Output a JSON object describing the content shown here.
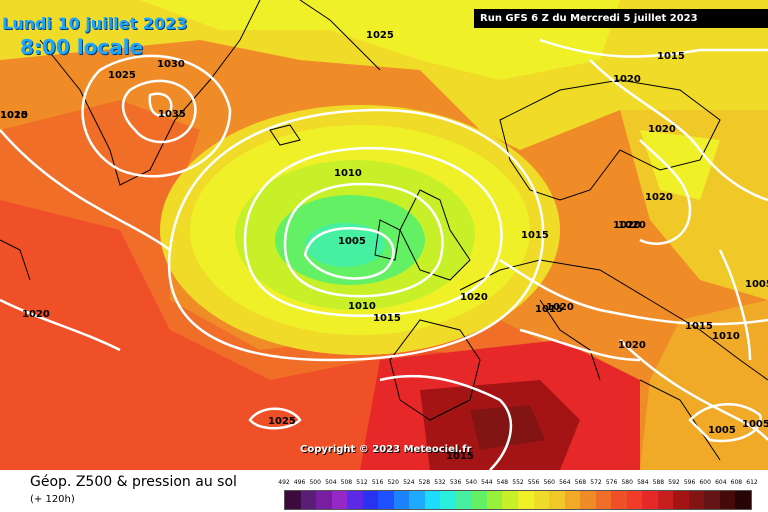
{
  "header": {
    "date": "Lundi 10 juillet 2023",
    "time": "8:00 locale",
    "run": "Run GFS 6 Z du Mercredi 5 juillet 2023"
  },
  "copyright": "Copyright © 2023 Meteociel.fr",
  "footer": {
    "title": "Géop. Z500 & pression au sol",
    "subtitle": "(+ 120h)"
  },
  "isobar_labels": [
    "1010",
    "1025",
    "1030",
    "1025",
    "1035",
    "1025",
    "1010",
    "1005",
    "1010",
    "1015",
    "1020",
    "1015",
    "1020",
    "1020",
    "1015",
    "1020",
    "1020",
    "1020",
    "1020",
    "1015",
    "1020",
    "1005",
    "1015",
    "1010",
    "1005",
    "1005",
    "1015",
    "1025",
    "1020"
  ],
  "legend": {
    "ticks": [
      "492",
      "496",
      "500",
      "504",
      "508",
      "512",
      "516",
      "520",
      "524",
      "528",
      "532",
      "536",
      "540",
      "544",
      "548",
      "552",
      "556",
      "560",
      "564",
      "568",
      "572",
      "576",
      "580",
      "584",
      "588",
      "592",
      "596",
      "600",
      "604",
      "608",
      "612"
    ],
    "colors": [
      "#3c0a3c",
      "#5a1e78",
      "#781ea0",
      "#9628c8",
      "#5a28e6",
      "#2832f0",
      "#1e50ff",
      "#1e82ff",
      "#1eaaff",
      "#1edcff",
      "#28f0dc",
      "#46f0a0",
      "#64f064",
      "#96f03c",
      "#c8f028",
      "#f0f028",
      "#f0dc28",
      "#f0c828",
      "#f0aa28",
      "#f08c28",
      "#f06e28",
      "#f05028",
      "#f03c28",
      "#e62828",
      "#c81e1e",
      "#a51414",
      "#821414",
      "#641414",
      "#460a0a",
      "#280505"
    ]
  },
  "colors": {
    "header_text": "#1ea6ff",
    "isobar": "#ffffff",
    "background": "#ffffff"
  }
}
